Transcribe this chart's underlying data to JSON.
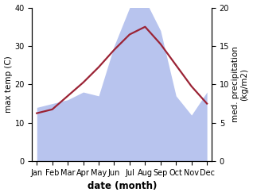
{
  "months": [
    "Jan",
    "Feb",
    "Mar",
    "Apr",
    "May",
    "Jun",
    "Jul",
    "Aug",
    "Sep",
    "Oct",
    "Nov",
    "Dec"
  ],
  "month_positions": [
    0,
    1,
    2,
    3,
    4,
    5,
    6,
    7,
    8,
    9,
    10,
    11
  ],
  "temperature": [
    12.5,
    13.5,
    17.0,
    20.5,
    24.5,
    29.0,
    33.0,
    35.0,
    30.5,
    25.0,
    19.5,
    15.0
  ],
  "precipitation": [
    7.0,
    7.5,
    8.0,
    9.0,
    8.5,
    15.0,
    20.0,
    21.0,
    17.0,
    8.5,
    6.0,
    9.0
  ],
  "temp_color": "#9b2335",
  "precip_color": "#b8c4ee",
  "background_color": "#ffffff",
  "ylabel_left": "max temp (C)",
  "ylabel_right": "med. precipitation\n(kg/m2)",
  "xlabel": "date (month)",
  "ylim_left": [
    0,
    40
  ],
  "ylim_right": [
    0,
    20
  ],
  "yticks_left": [
    0,
    10,
    20,
    30,
    40
  ],
  "yticks_right": [
    0,
    5,
    10,
    15,
    20
  ],
  "label_fontsize": 7.5,
  "tick_fontsize": 7.0,
  "xlabel_fontsize": 8.5,
  "line_width": 1.6
}
